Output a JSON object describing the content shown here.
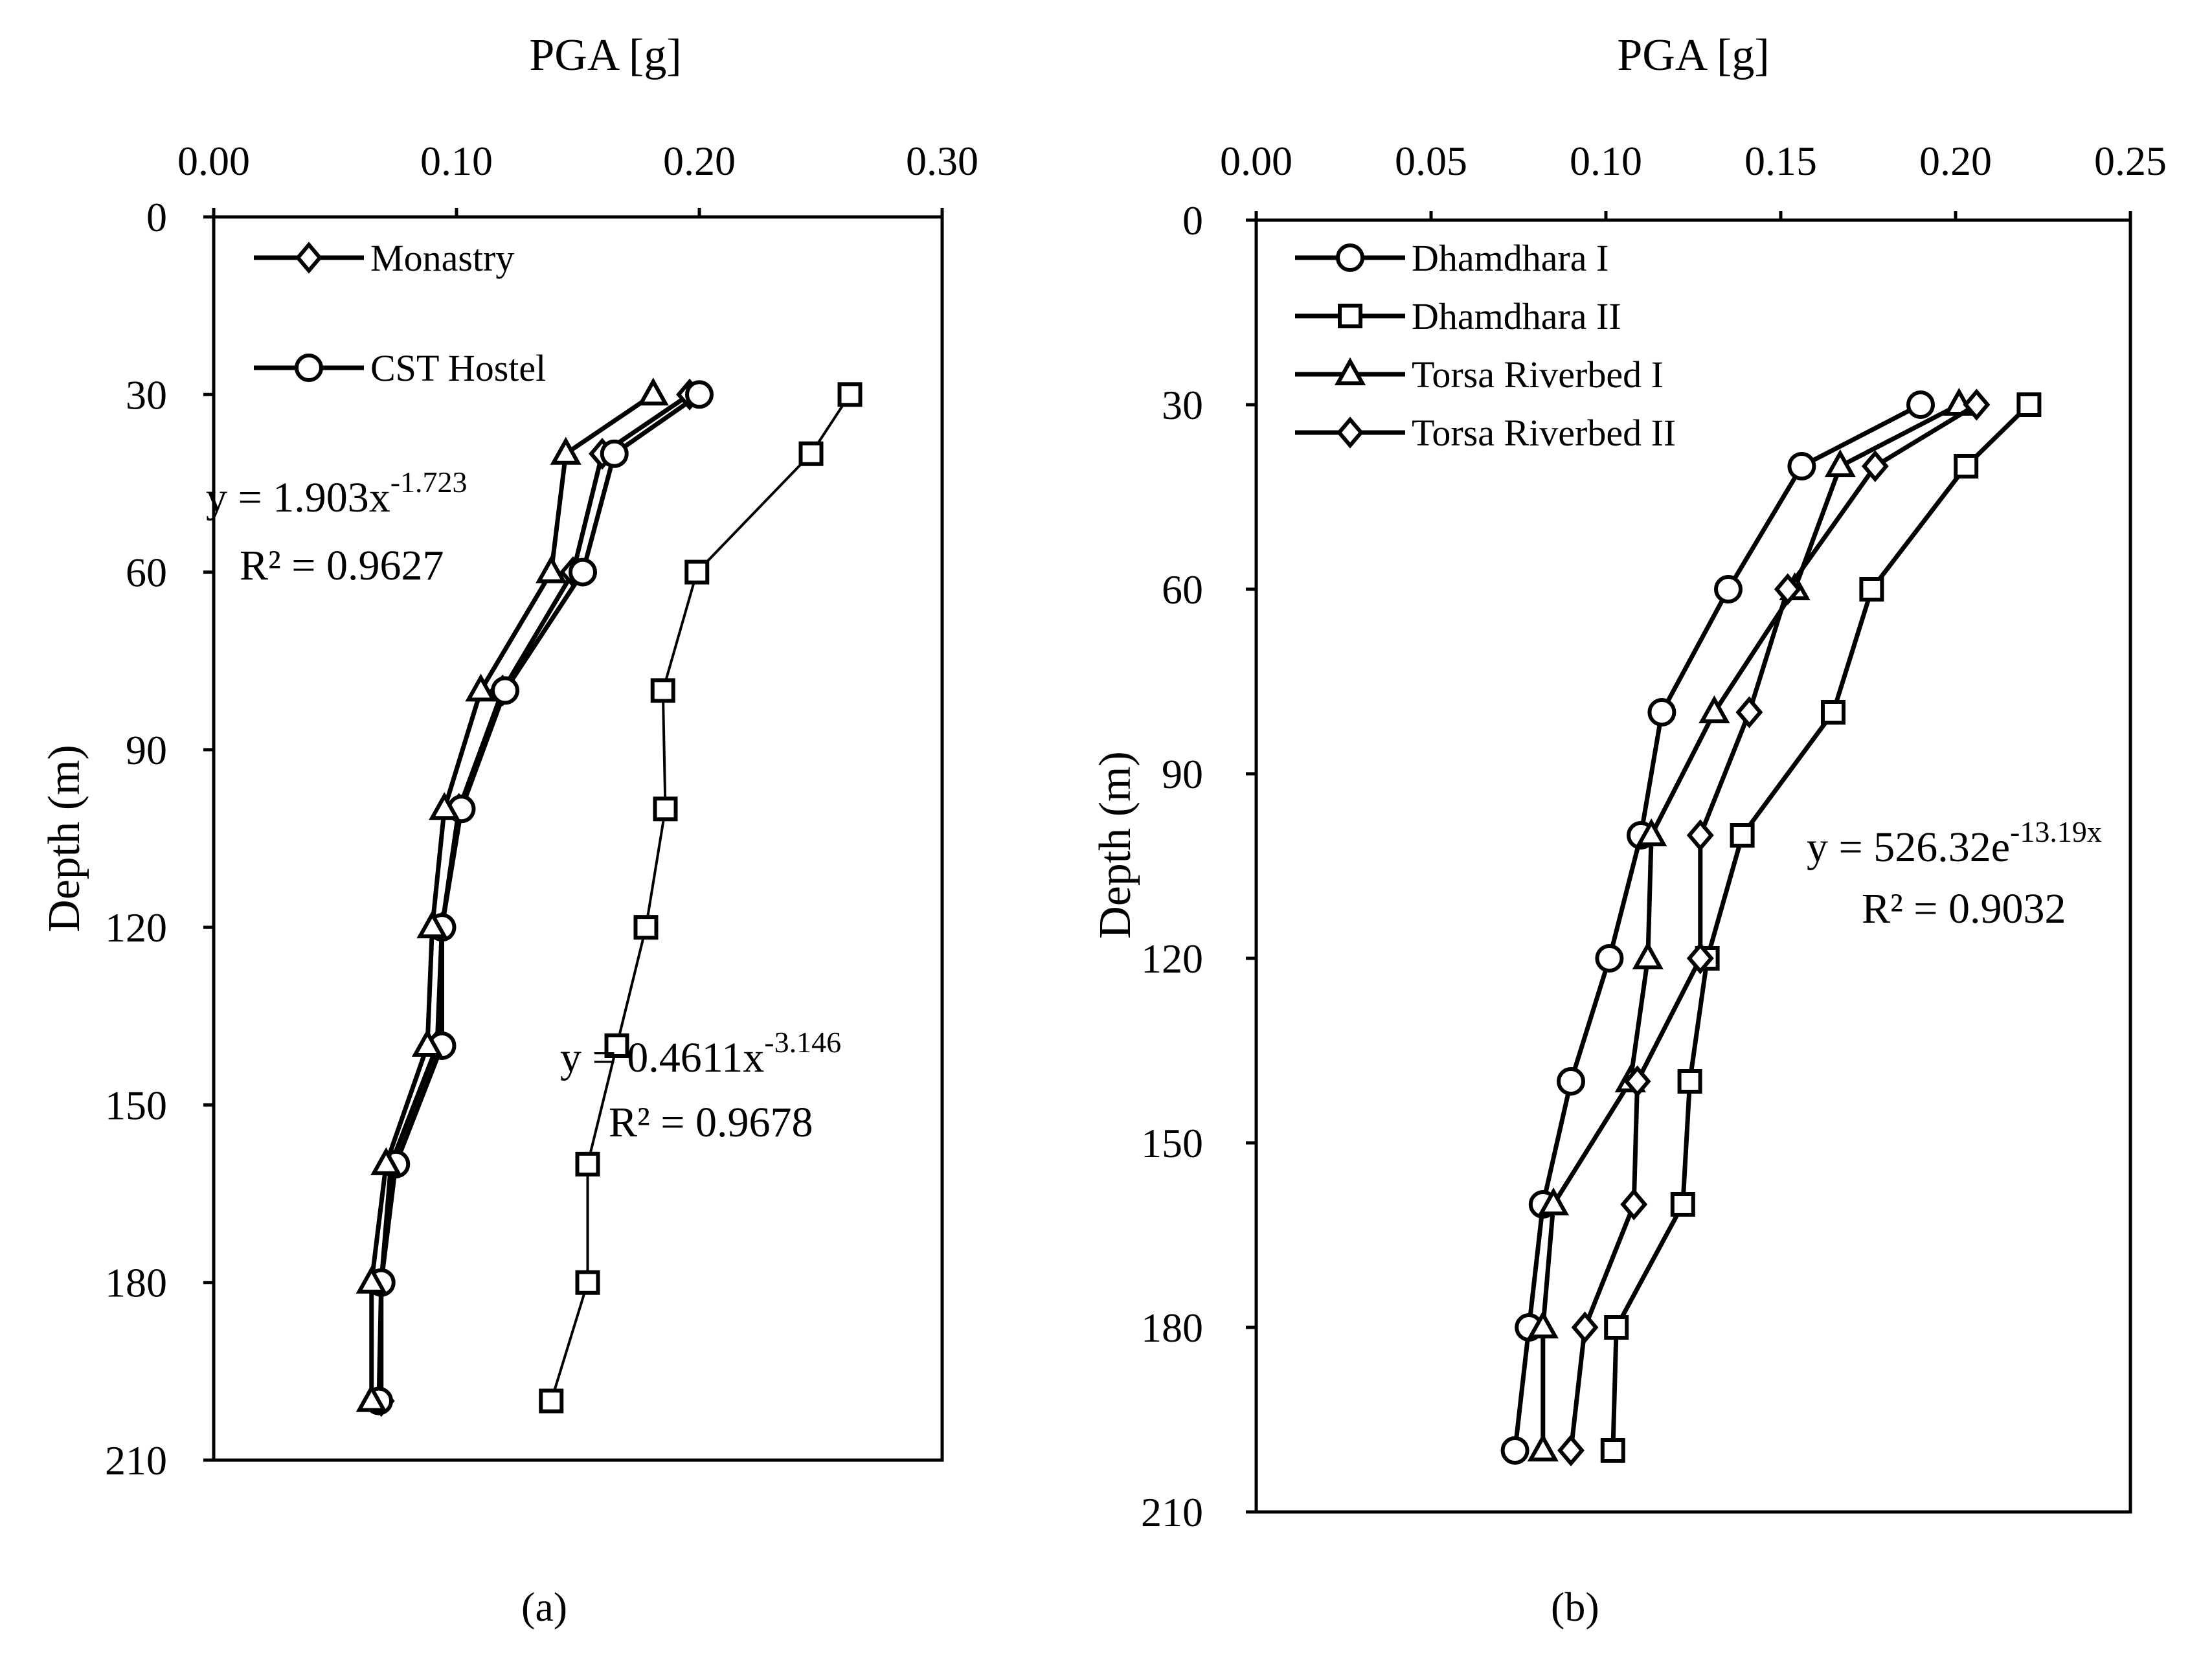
{
  "chart_data": [
    {
      "type": "line",
      "panel": "(a)",
      "xlabel": "PGA [g]",
      "ylabel": "Depth (m)",
      "xlim": [
        0,
        0.3
      ],
      "ylim": [
        0,
        210
      ],
      "x_ticks": [
        "0.00",
        "0.10",
        "0.20",
        "0.30"
      ],
      "x_tick_values": [
        0,
        0.1,
        0.2,
        0.3
      ],
      "y_ticks": [
        "0",
        "30",
        "60",
        "90",
        "120",
        "150",
        "180",
        "210"
      ],
      "y_tick_values": [
        0,
        30,
        60,
        90,
        120,
        150,
        180,
        210
      ],
      "legend_position": "top-left",
      "legend": [
        "Monastry",
        "CST Hostel"
      ],
      "series": [
        {
          "name": "Monastry",
          "marker": "diamond",
          "in_legend": true,
          "depth": [
            30,
            40,
            60,
            80,
            100,
            120,
            140,
            160,
            180,
            200
          ],
          "pga": [
            0.196,
            0.16,
            0.148,
            0.119,
            0.101,
            0.094,
            0.092,
            0.073,
            0.069,
            0.069
          ]
        },
        {
          "name": "CST Hostel",
          "marker": "circle",
          "in_legend": true,
          "depth": [
            30,
            40,
            60,
            80,
            100,
            120,
            140,
            160,
            180,
            200
          ],
          "pga": [
            0.2,
            0.165,
            0.152,
            0.12,
            0.102,
            0.094,
            0.094,
            0.075,
            0.069,
            0.068
          ]
        },
        {
          "name": "triangle series",
          "marker": "triangle",
          "in_legend": false,
          "depth": [
            30,
            40,
            60,
            80,
            100,
            120,
            140,
            160,
            180,
            200
          ],
          "pga": [
            0.181,
            0.145,
            0.139,
            0.11,
            0.095,
            0.09,
            0.088,
            0.071,
            0.065,
            0.065
          ]
        },
        {
          "name": "square series",
          "marker": "square",
          "in_legend": false,
          "depth": [
            30,
            40,
            60,
            80,
            100,
            120,
            140,
            160,
            180,
            200
          ],
          "pga": [
            0.262,
            0.246,
            0.199,
            0.185,
            0.186,
            0.178,
            0.166,
            0.154,
            0.154,
            0.139
          ]
        }
      ],
      "annotations": [
        {
          "text": "y = 1.903x",
          "sup": "-1.723"
        },
        {
          "text": "R² = 0.9627"
        },
        {
          "text": "y = 0.4611x",
          "sup": "-3.146"
        },
        {
          "text": "R² = 0.9678"
        }
      ]
    },
    {
      "type": "line",
      "panel": "(b)",
      "xlabel": "PGA [g]",
      "ylabel": "Depth (m)",
      "xlim": [
        0,
        0.25
      ],
      "ylim": [
        0,
        210
      ],
      "x_ticks": [
        "0.00",
        "0.05",
        "0.10",
        "0.15",
        "0.20",
        "0.25"
      ],
      "x_tick_values": [
        0,
        0.05,
        0.1,
        0.15,
        0.2,
        0.25
      ],
      "y_ticks": [
        "0",
        "30",
        "60",
        "90",
        "120",
        "150",
        "180",
        "210"
      ],
      "y_tick_values": [
        0,
        30,
        60,
        90,
        120,
        150,
        180,
        210
      ],
      "legend_position": "top-left",
      "legend": [
        "Dhamdhara I",
        "Dhamdhara II",
        "Torsa Riverbed I",
        "Torsa Riverbed II"
      ],
      "series": [
        {
          "name": "Dhamdhara I",
          "marker": "circle",
          "in_legend": true,
          "depth": [
            30,
            40,
            60,
            80,
            100,
            120,
            140,
            160,
            180,
            200
          ],
          "pga": [
            0.19,
            0.156,
            0.135,
            0.116,
            0.11,
            0.101,
            0.09,
            0.082,
            0.078,
            0.074
          ]
        },
        {
          "name": "Dhamdhara II",
          "marker": "square",
          "in_legend": true,
          "depth": [
            30,
            40,
            60,
            80,
            100,
            120,
            140,
            160,
            180,
            200
          ],
          "pga": [
            0.221,
            0.203,
            0.176,
            0.165,
            0.139,
            0.129,
            0.124,
            0.122,
            0.103,
            0.102
          ]
        },
        {
          "name": "Torsa Riverbed I",
          "marker": "triangle",
          "in_legend": true,
          "depth": [
            30,
            40,
            60,
            80,
            100,
            120,
            140,
            160,
            180,
            200
          ],
          "pga": [
            0.201,
            0.167,
            0.154,
            0.131,
            0.113,
            0.112,
            0.107,
            0.085,
            0.082,
            0.082
          ]
        },
        {
          "name": "Torsa Riverbed II",
          "marker": "diamond",
          "in_legend": true,
          "depth": [
            30,
            40,
            60,
            80,
            100,
            120,
            140,
            160,
            180,
            200
          ],
          "pga": [
            0.206,
            0.177,
            0.152,
            0.141,
            0.127,
            0.127,
            0.109,
            0.108,
            0.094,
            0.09
          ]
        }
      ],
      "annotations": [
        {
          "text": "y = 526.32e",
          "sup": "-13.19x"
        },
        {
          "text": "R² = 0.9032"
        }
      ]
    }
  ]
}
